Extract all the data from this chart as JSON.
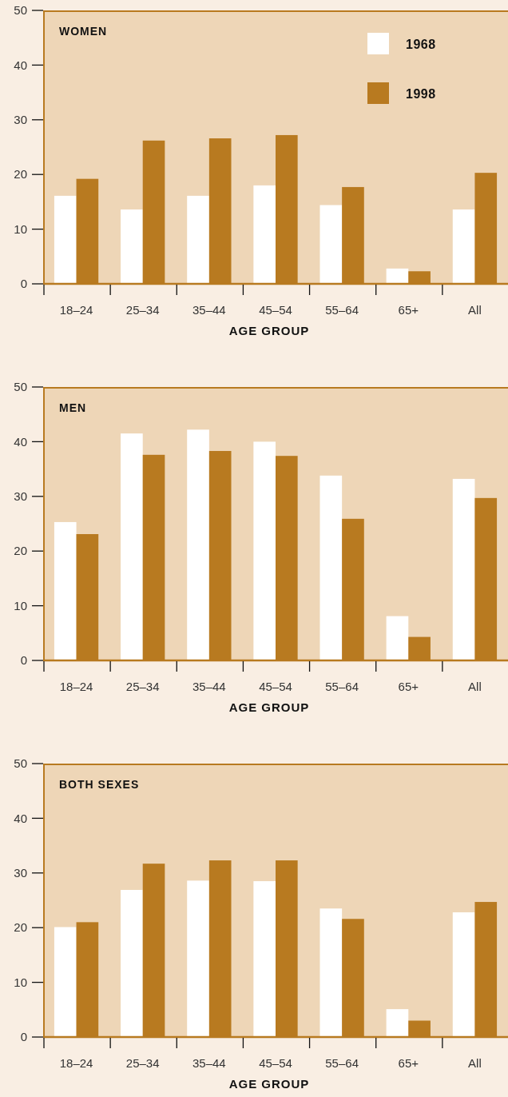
{
  "chart_data": [
    {
      "type": "bar",
      "title": "WOMEN",
      "xlabel": "AGE GROUP",
      "categories": [
        "18–24",
        "25–34",
        "35–44",
        "45–54",
        "55–64",
        "65+",
        "All"
      ],
      "series": [
        {
          "name": "1968",
          "color": "#ffffff",
          "values": [
            16.1,
            13.6,
            16.1,
            18.0,
            14.4,
            2.8,
            13.6
          ]
        },
        {
          "name": "1998",
          "color": "#b87a20",
          "values": [
            19.2,
            26.2,
            26.6,
            27.2,
            17.7,
            2.3,
            20.3
          ]
        }
      ],
      "ylim": [
        0,
        50
      ],
      "yticks": [
        0,
        10,
        20,
        30,
        40,
        50
      ],
      "legend": "top right",
      "grid": false
    },
    {
      "type": "bar",
      "title": "MEN",
      "xlabel": "AGE GROUP",
      "categories": [
        "18–24",
        "25–34",
        "35–44",
        "45–54",
        "55–64",
        "65+",
        "All"
      ],
      "series": [
        {
          "color": "#ffffff",
          "values": [
            25.3,
            41.5,
            42.2,
            40.0,
            33.8,
            8.1,
            33.2
          ]
        },
        {
          "color": "#b87a20",
          "values": [
            23.1,
            37.6,
            38.3,
            37.4,
            25.9,
            4.3,
            29.7
          ]
        }
      ],
      "ylim": [
        0,
        50
      ],
      "yticks": [
        0,
        10,
        20,
        30,
        40,
        50
      ],
      "grid": false
    },
    {
      "type": "bar",
      "title": "BOTH SEXES",
      "xlabel": "AGE GROUP",
      "categories": [
        "18–24",
        "25–34",
        "35–44",
        "45–54",
        "55–64",
        "65+",
        "All"
      ],
      "series": [
        {
          "color": "#ffffff",
          "values": [
            20.1,
            26.9,
            28.6,
            28.5,
            23.5,
            5.1,
            22.8
          ]
        },
        {
          "color": "#b87a20",
          "values": [
            21.0,
            31.7,
            32.3,
            32.3,
            21.6,
            3.0,
            24.7
          ]
        }
      ],
      "ylim": [
        0,
        50
      ],
      "yticks": [
        0,
        10,
        20,
        30,
        40,
        50
      ],
      "grid": false
    }
  ]
}
